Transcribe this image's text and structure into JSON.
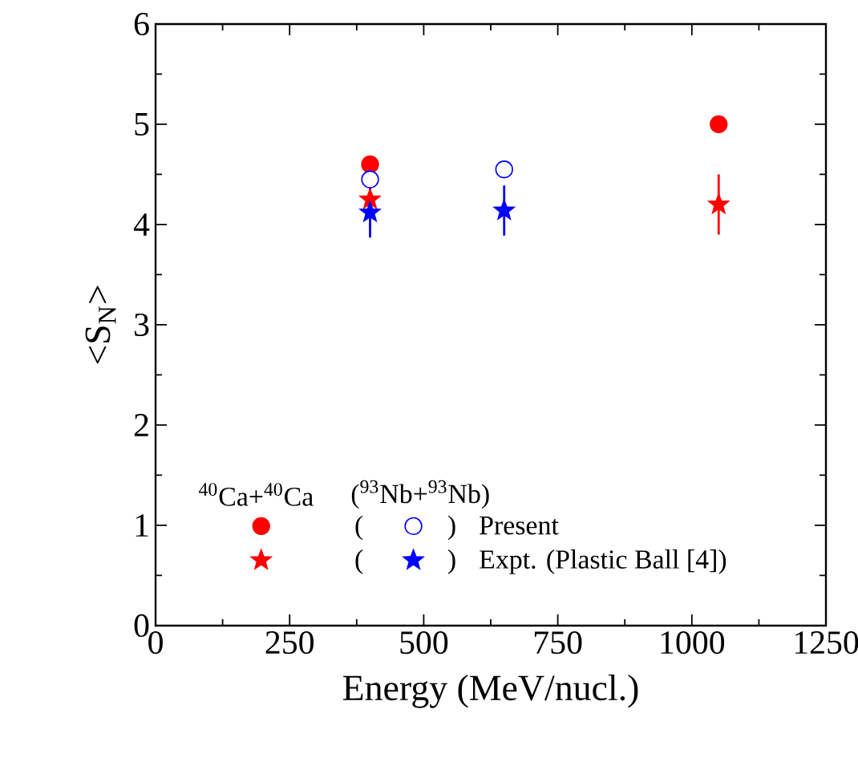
{
  "chart_data": {
    "type": "scatter",
    "xlabel": "Energy (MeV/nucl.)",
    "ylabel": "<S$_{N}$>",
    "xlim": [
      0,
      1250
    ],
    "xticks": [
      0,
      250,
      500,
      750,
      1000,
      1250
    ],
    "ylim": [
      0,
      6
    ],
    "yticks": [
      0,
      1,
      2,
      3,
      4,
      5,
      6
    ],
    "grid": false,
    "legend": "bottom",
    "legend_title": "$^{40}$Ca+$^{40}$Ca",
    "annotations": [
      "($^{93}$Nb+$^{93}$Nb)",
      "(",
      ")",
      "(",
      ")"
    ],
    "series": [
      {
        "color": "#ff0000",
        "marker": "circle",
        "x": [
          400,
          1050
        ],
        "values": [
          4.6,
          5.0
        ]
      },
      {
        "name": "Present",
        "color": "#0000ff",
        "marker": "open circle",
        "x": [
          400,
          650
        ],
        "values": [
          4.45,
          4.55
        ]
      },
      {
        "color": "#ff0000",
        "marker": "star",
        "x": [
          400,
          1050
        ],
        "values": [
          4.25,
          4.2
        ],
        "errors": [
          0.3,
          0.3
        ]
      },
      {
        "name": "Expt. (Plastic Ball [4])",
        "color": "#0000ff",
        "marker": "star",
        "x": [
          400,
          650
        ],
        "values": [
          4.12,
          4.14
        ],
        "errors": [
          0.25,
          0.25
        ]
      }
    ]
  }
}
